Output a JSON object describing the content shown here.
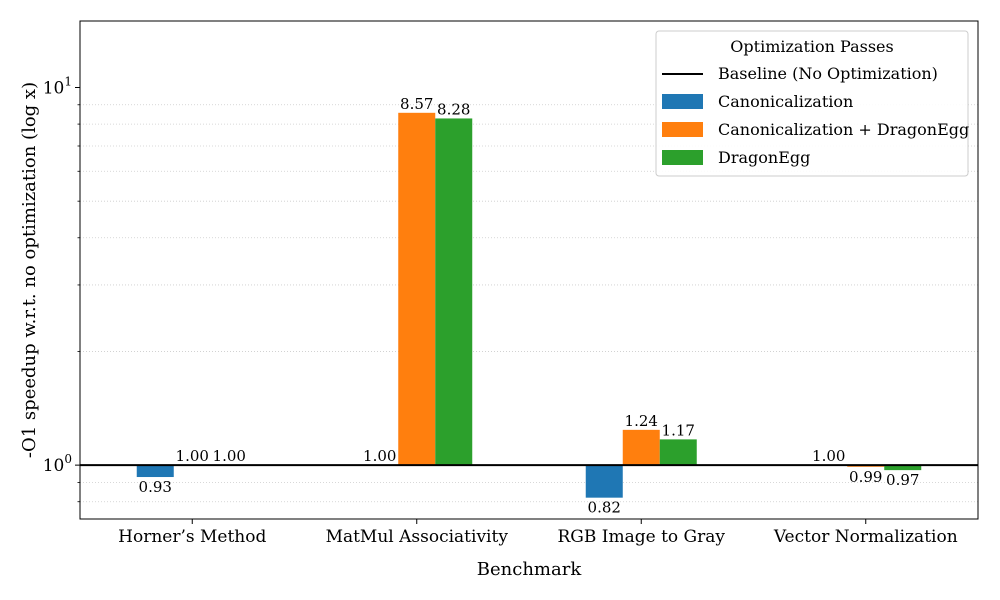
{
  "chart_data": {
    "type": "bar",
    "yscale": "log",
    "ylim": [
      0.72,
      15.0
    ],
    "xlabel": "Benchmark",
    "ylabel": "-O1 speedup w.r.t. no optimization (log x)",
    "categories": [
      "Horner’s Method",
      "MatMul Associativity",
      "RGB Image to Gray",
      "Vector Normalization"
    ],
    "yticks": [
      {
        "value": 1,
        "base": "10",
        "exp": "0"
      },
      {
        "value": 10,
        "base": "10",
        "exp": "1"
      }
    ],
    "grid": "horizontal-minor-dotted",
    "baseline": {
      "name": "Baseline (No Optimization)",
      "value": 1.0,
      "color": "#000000"
    },
    "series": [
      {
        "name": "Canonicalization",
        "color": "#1f77b4",
        "values": [
          0.93,
          1.0,
          0.82,
          1.0
        ]
      },
      {
        "name": "Canonicalization + DragonEgg",
        "color": "#ff7f0e",
        "values": [
          1.0,
          8.57,
          1.24,
          0.99
        ]
      },
      {
        "name": "DragonEgg",
        "color": "#2ca02c",
        "values": [
          1.0,
          8.28,
          1.17,
          0.97
        ]
      }
    ],
    "value_labels": [
      [
        "0.93",
        "1.00",
        "0.82",
        "1.00"
      ],
      [
        "1.00",
        "8.57",
        "1.24",
        "0.99"
      ],
      [
        "1.00",
        "8.28",
        "1.17",
        "0.97"
      ]
    ],
    "legend": {
      "title": "Optimization Passes",
      "placement": "top-right"
    }
  }
}
